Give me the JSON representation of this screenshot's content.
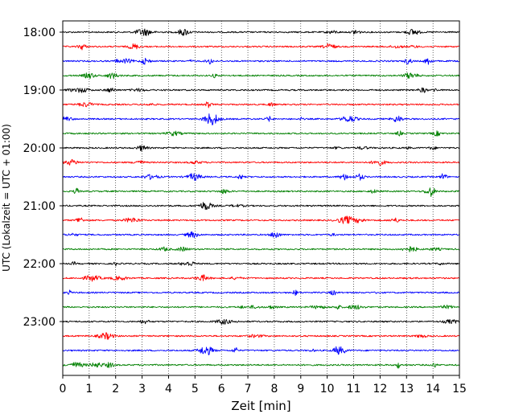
{
  "chart_data": {
    "type": "line",
    "title": "",
    "xlabel": "Zeit  [min]",
    "ylabel": "UTC (Lokalzeit = UTC + 01:00)",
    "xlim": [
      0,
      15
    ],
    "x_ticks": [
      0,
      1,
      2,
      3,
      4,
      5,
      6,
      7,
      8,
      9,
      10,
      11,
      12,
      13,
      14,
      15
    ],
    "x_tick_labels": [
      "0",
      "1",
      "2",
      "3",
      "4",
      "5",
      "6",
      "7",
      "8",
      "9",
      "10",
      "11",
      "12",
      "13",
      "14",
      "15"
    ],
    "y_tick_labels": [
      "18:00",
      "19:00",
      "20:00",
      "21:00",
      "22:00",
      "23:00"
    ],
    "y_axis_direction": "time increases downward",
    "trace_interval_min": 15,
    "traces_start": "18:00",
    "traces_end": "23:45",
    "trace_count": 24,
    "trace_colors": [
      "#000000",
      "#ff0000",
      "#0000ff",
      "#008000"
    ],
    "grid": "vertical dotted lines at each minute",
    "legend": "none"
  }
}
